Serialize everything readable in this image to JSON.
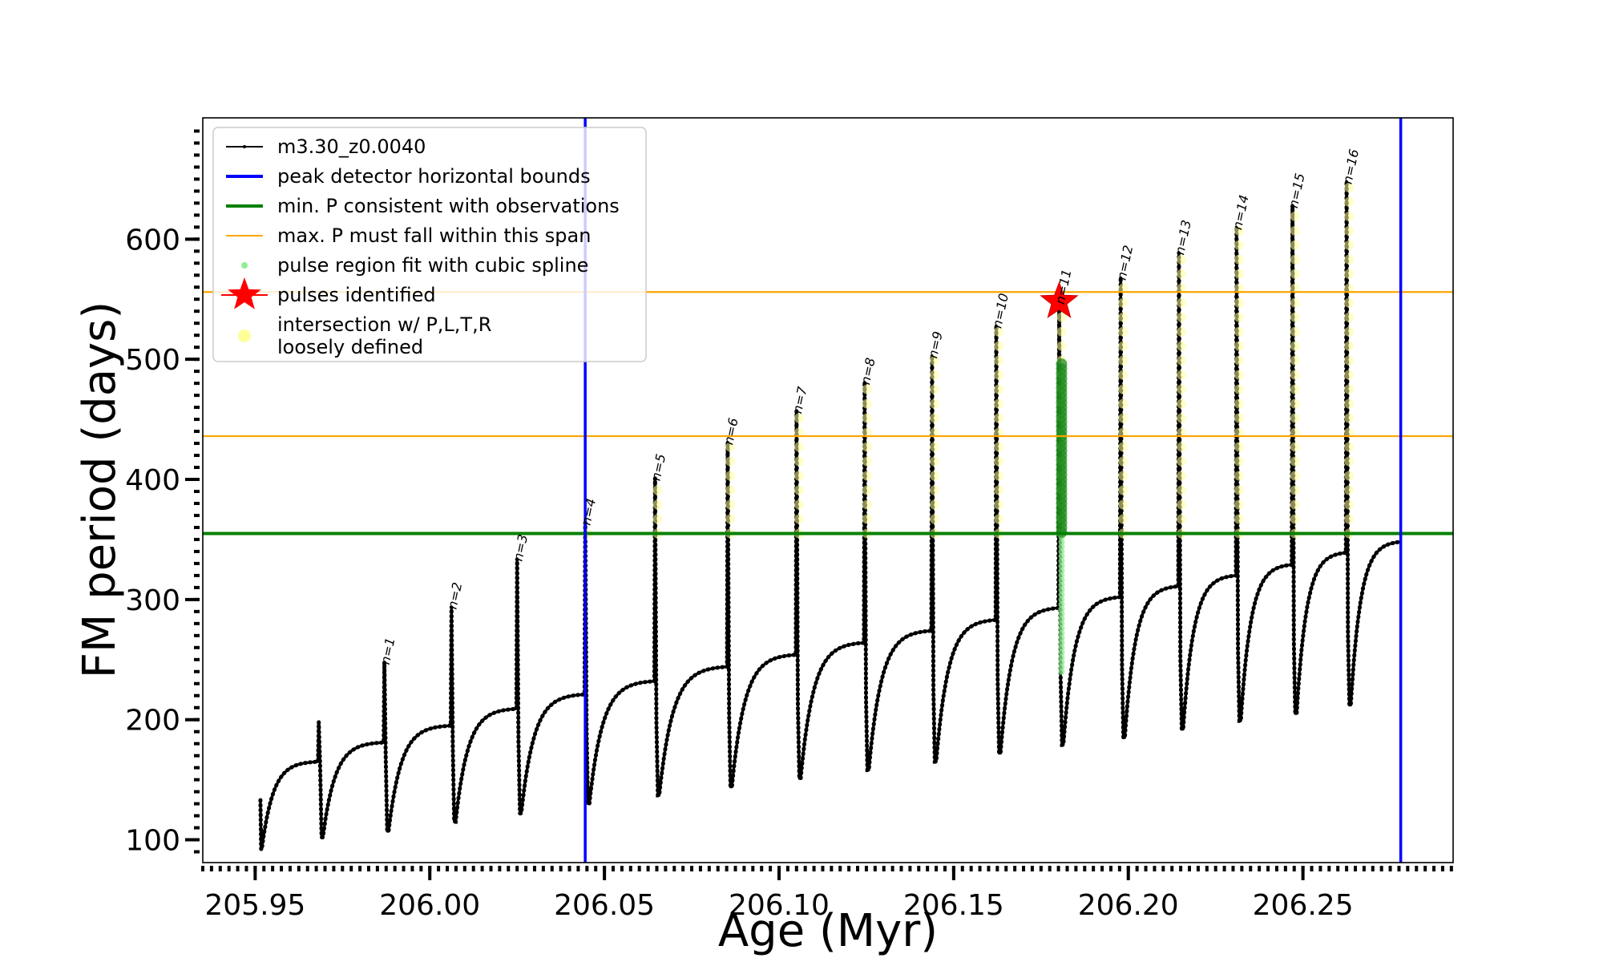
{
  "chart_data": {
    "type": "line",
    "xlabel": "Age (Myr)",
    "ylabel": "FM period (days)",
    "xlim": [
      205.935,
      206.293
    ],
    "ylim": [
      81,
      701
    ],
    "x_ticks": [
      205.95,
      206.0,
      206.05,
      206.1,
      206.15,
      206.2,
      206.25
    ],
    "x_tick_labels": [
      "205.95",
      "206.00",
      "206.05",
      "206.10",
      "206.15",
      "206.20",
      "206.25"
    ],
    "x_minor_step": 0.0025,
    "y_ticks": [
      100,
      200,
      300,
      400,
      500,
      600
    ],
    "y_tick_labels": [
      "100",
      "200",
      "300",
      "400",
      "500",
      "600"
    ],
    "y_minor_step": 10,
    "grid": false,
    "legend_position": "top-left",
    "colors": {
      "track": "#000000",
      "bounds": "#0000ff",
      "min_period": "#008000",
      "max_span": "#ffa500",
      "spline": "#90ee90",
      "pulse_star": "#ff0000",
      "intersection": "#ffff99"
    },
    "legend": [
      {
        "label": "m3.30_z0.0040",
        "kind": "track"
      },
      {
        "label": "peak detector horizontal bounds",
        "kind": "bounds"
      },
      {
        "label": "min. P consistent with observations",
        "kind": "min_period"
      },
      {
        "label": "max. P must fall within this span",
        "kind": "max_span"
      },
      {
        "label": "pulse region fit with cubic spline",
        "kind": "spline"
      },
      {
        "label": "pulses identified",
        "kind": "pulse_star"
      },
      {
        "label": "intersection w/ P,L,T,R",
        "label2": "loosely defined",
        "kind": "intersection"
      }
    ],
    "series_name": "m3.30_z0.0040",
    "start_point": {
      "x": 205.9515,
      "y": 133
    },
    "cycles": [
      {
        "x": 205.9682,
        "peak": 198,
        "min": 92,
        "top": 165,
        "label": ""
      },
      {
        "x": 205.987,
        "peak": 248,
        "min": 102,
        "top": 181,
        "label": "n=1"
      },
      {
        "x": 206.0062,
        "peak": 294,
        "min": 107,
        "top": 195,
        "label": "n=2"
      },
      {
        "x": 206.025,
        "peak": 334,
        "min": 115,
        "top": 209,
        "label": "n=3"
      },
      {
        "x": 206.0445,
        "peak": 364,
        "min": 122,
        "top": 221,
        "label": "n=4"
      },
      {
        "x": 206.0645,
        "peak": 401,
        "min": 130,
        "top": 232,
        "label": "n=5"
      },
      {
        "x": 206.0853,
        "peak": 431,
        "min": 137,
        "top": 244,
        "label": "n=6"
      },
      {
        "x": 206.105,
        "peak": 457,
        "min": 144,
        "top": 254,
        "label": "n=7"
      },
      {
        "x": 206.1245,
        "peak": 481,
        "min": 151,
        "top": 264,
        "label": "n=8"
      },
      {
        "x": 206.1438,
        "peak": 503,
        "min": 158,
        "top": 274,
        "label": "n=9"
      },
      {
        "x": 206.1622,
        "peak": 528,
        "min": 165,
        "top": 283,
        "label": "n=10"
      },
      {
        "x": 206.1802,
        "peak": 548,
        "min": 172,
        "top": 293,
        "label": "n=11"
      },
      {
        "x": 206.1978,
        "peak": 568,
        "min": 179,
        "top": 302,
        "label": "n=12"
      },
      {
        "x": 206.2145,
        "peak": 589,
        "min": 185,
        "top": 311,
        "label": "n=13"
      },
      {
        "x": 206.231,
        "peak": 610,
        "min": 192,
        "top": 320,
        "label": "n=14"
      },
      {
        "x": 206.247,
        "peak": 628,
        "min": 199,
        "top": 329,
        "label": "n=15"
      },
      {
        "x": 206.2625,
        "peak": 648,
        "min": 205,
        "top": 339,
        "label": "n=16"
      }
    ],
    "final_rise": {
      "min": 212,
      "top": 348,
      "end_x": 206.278
    },
    "vertical_bounds_x": [
      206.0445,
      206.278
    ],
    "min_period_y": 355,
    "max_period_span": [
      436,
      556
    ],
    "pulse_identified": {
      "x": 206.1802,
      "y": 548
    },
    "spline_region": {
      "x": 206.1802,
      "y_from": 240,
      "y_to": 496
    }
  }
}
